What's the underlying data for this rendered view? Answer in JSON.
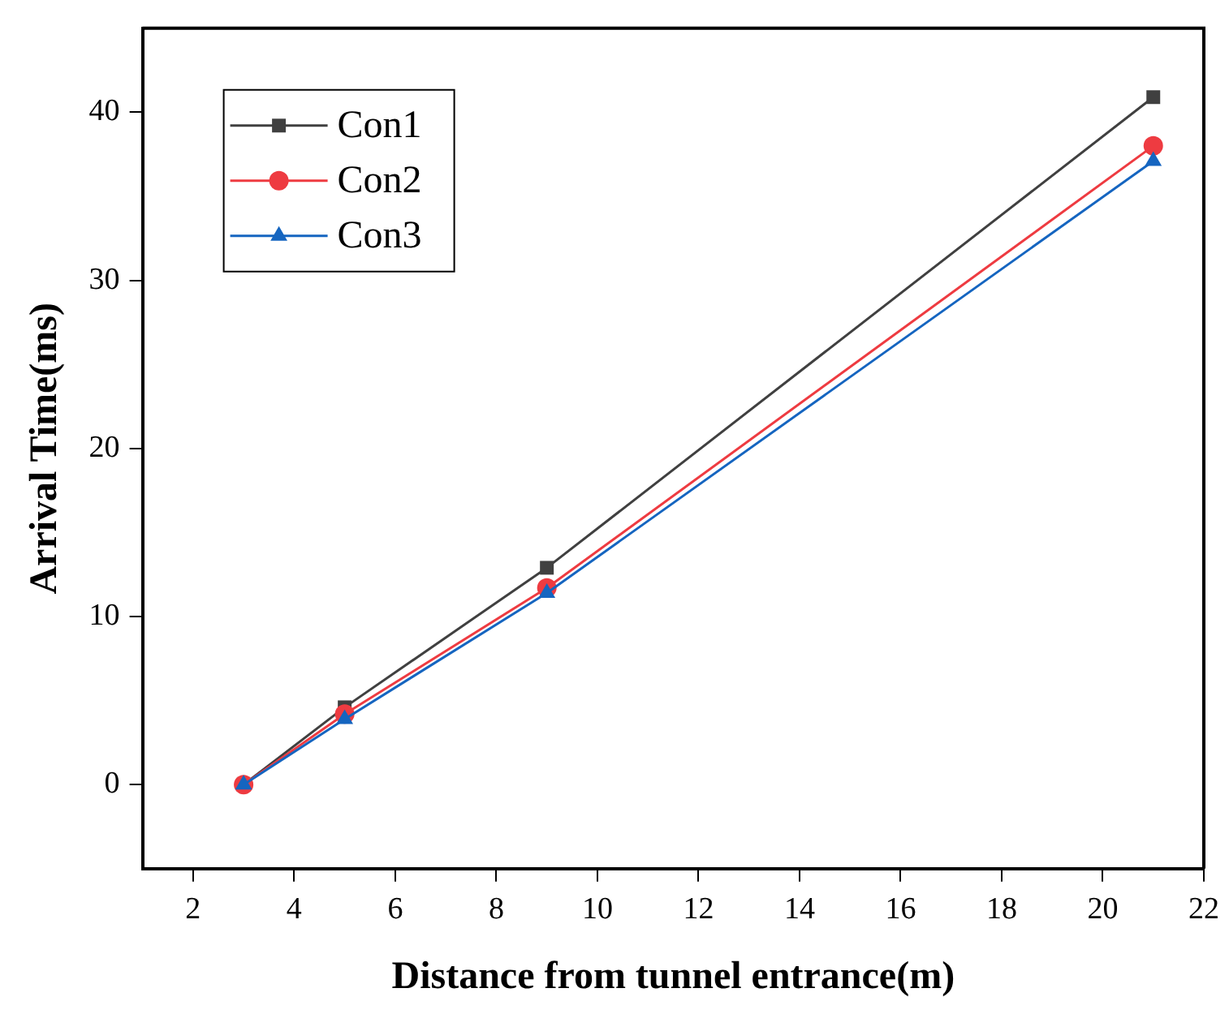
{
  "chart_data": {
    "type": "line",
    "xlabel": "Distance from tunnel entrance(m)",
    "ylabel": "Arrival Time(ms)",
    "x": [
      3,
      5,
      9,
      21
    ],
    "series": [
      {
        "name": "Con1",
        "color": "#404040",
        "marker": "square",
        "values": [
          0,
          4.6,
          12.9,
          40.9
        ]
      },
      {
        "name": "Con2",
        "color": "#ee3b41",
        "marker": "circle",
        "values": [
          0,
          4.2,
          11.7,
          38.0
        ]
      },
      {
        "name": "Con3",
        "color": "#1565c0",
        "marker": "triangle",
        "values": [
          0,
          3.9,
          11.4,
          37.1
        ]
      }
    ],
    "xlim": [
      1,
      22
    ],
    "xticks": [
      2,
      4,
      6,
      8,
      10,
      12,
      14,
      16,
      18,
      20,
      22
    ],
    "ylim": [
      -5,
      45
    ],
    "yticks": [
      0,
      10,
      20,
      30,
      40
    ],
    "grid": false,
    "legend": "top left",
    "line_style": "solid"
  }
}
